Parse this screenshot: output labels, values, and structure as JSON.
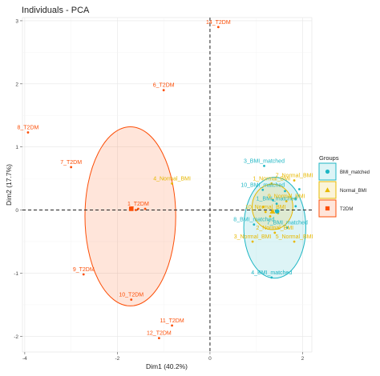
{
  "chart_data": {
    "type": "scatter",
    "title": "Individuals - PCA",
    "xlabel": "Dim1 (40.2%)",
    "ylabel": "Dim2 (17.7%)",
    "xlim": [
      -4.05,
      2.2
    ],
    "ylim": [
      -2.25,
      3.05
    ],
    "x_ticks": [
      -4,
      -2,
      0,
      2
    ],
    "y_ticks": [
      -2,
      -1,
      0,
      1,
      2,
      3
    ],
    "grid": true,
    "legend_position": "right",
    "legend_title": "Groups",
    "groups": [
      {
        "name": "BMI_matched",
        "color": "#1eb6c4",
        "marker": "circle"
      },
      {
        "name": "Normal_BMI",
        "color": "#e7b800",
        "marker": "triangle"
      },
      {
        "name": "T2DM",
        "color": "#fc4e07",
        "marker": "square"
      }
    ],
    "points": [
      {
        "label": "14_T2DM",
        "group": "T2DM",
        "x": 0.18,
        "y": 2.9
      },
      {
        "label": "6_T2DM",
        "group": "T2DM",
        "x": -1.0,
        "y": 1.9
      },
      {
        "label": "8_T2DM",
        "group": "T2DM",
        "x": -3.93,
        "y": 1.23
      },
      {
        "label": "7_T2DM",
        "group": "T2DM",
        "x": -3.0,
        "y": 0.68
      },
      {
        "label": "1_T2DM",
        "group": "T2DM",
        "x": -1.55,
        "y": 0.02
      },
      {
        "label": "9_T2DM",
        "group": "T2DM",
        "x": -2.73,
        "y": -1.02
      },
      {
        "label": "10_T2DM",
        "group": "T2DM",
        "x": -1.7,
        "y": -1.42
      },
      {
        "label": "11_T2DM",
        "group": "T2DM",
        "x": -0.82,
        "y": -1.83
      },
      {
        "label": "12_T2DM",
        "group": "T2DM",
        "x": -1.1,
        "y": -2.03
      },
      {
        "label": "",
        "group": "T2DM",
        "x": -1.4,
        "y": 0.02
      },
      {
        "label": "",
        "group": "T2DM",
        "x": -1.6,
        "y": 0.0
      },
      {
        "label": "3_BMI_matched",
        "group": "BMI_matched",
        "x": 1.17,
        "y": 0.7
      },
      {
        "label": "1_BMI_matched",
        "group": "BMI_matched",
        "x": 1.44,
        "y": 0.1
      },
      {
        "label": "10_BMI_matched",
        "group": "BMI_matched",
        "x": 1.14,
        "y": 0.32
      },
      {
        "label": "8_BMI_matched",
        "group": "BMI_matched",
        "x": 0.95,
        "y": -0.23
      },
      {
        "label": "7_BMI_matched",
        "group": "BMI_matched",
        "x": 1.67,
        "y": -0.28
      },
      {
        "label": "4_BMI_matched",
        "group": "BMI_matched",
        "x": 1.33,
        "y": -1.07
      },
      {
        "label": "",
        "group": "BMI_matched",
        "x": 1.93,
        "y": 0.33
      },
      {
        "label": "",
        "group": "BMI_matched",
        "x": 1.85,
        "y": 0.18
      },
      {
        "label": "",
        "group": "BMI_matched",
        "x": 1.62,
        "y": 0.3
      },
      {
        "label": "",
        "group": "BMI_matched",
        "x": 1.36,
        "y": 0.16
      },
      {
        "label": "",
        "group": "BMI_matched",
        "x": 1.85,
        "y": 0.06
      },
      {
        "label": "1_Normal_BMI",
        "group": "Normal_BMI",
        "x": 1.33,
        "y": 0.42
      },
      {
        "label": "7_Normal_BMI",
        "group": "Normal_BMI",
        "x": 1.82,
        "y": 0.47
      },
      {
        "label": "4_Normal_BMI",
        "group": "Normal_BMI",
        "x": -0.82,
        "y": 0.42
      },
      {
        "label": "9_Normal_BMI",
        "group": "Normal_BMI",
        "x": 1.65,
        "y": 0.14
      },
      {
        "label": "10_Normal_BMI",
        "group": "Normal_BMI",
        "x": 1.2,
        "y": -0.03
      },
      {
        "label": "2_Normal_BMI",
        "group": "Normal_BMI",
        "x": 1.4,
        "y": -0.36
      },
      {
        "label": "5_Normal_BMI",
        "group": "Normal_BMI",
        "x": 1.82,
        "y": -0.5
      },
      {
        "label": "3_Normal_BMI",
        "group": "Normal_BMI",
        "x": 0.92,
        "y": -0.5
      },
      {
        "label": "",
        "group": "Normal_BMI",
        "x": 1.15,
        "y": 0.05
      },
      {
        "label": "",
        "group": "Normal_BMI",
        "x": 1.47,
        "y": -0.05
      },
      {
        "label": "",
        "group": "Normal_BMI",
        "x": 1.3,
        "y": -0.1
      }
    ],
    "centroids": [
      {
        "group": "BMI_matched",
        "x": 1.45,
        "y": -0.02
      },
      {
        "group": "Normal_BMI",
        "x": 1.35,
        "y": -0.02
      },
      {
        "group": "T2DM",
        "x": -1.7,
        "y": 0.02
      }
    ],
    "ellipses": [
      {
        "group": "T2DM",
        "cx": -1.72,
        "cy": -0.1,
        "rx": 0.98,
        "ry": 1.42
      },
      {
        "group": "BMI_matched",
        "cx": 1.4,
        "cy": -0.28,
        "rx": 0.67,
        "ry": 0.8
      },
      {
        "group": "Normal_BMI",
        "cx": 1.35,
        "cy": 0.05,
        "rx": 0.44,
        "ry": 0.36
      }
    ]
  }
}
